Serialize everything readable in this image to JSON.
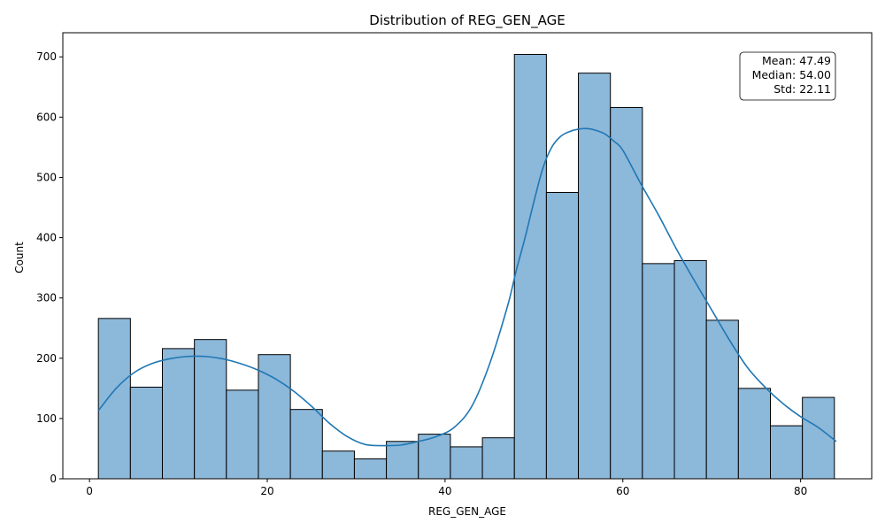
{
  "chart_data": {
    "type": "bar",
    "title": "Distribution of REG_GEN_AGE",
    "xlabel": "REG_GEN_AGE",
    "ylabel": "Count",
    "xlim": [
      -3,
      88
    ],
    "ylim": [
      0,
      740
    ],
    "x_ticks": [
      0,
      20,
      40,
      60,
      80
    ],
    "y_ticks": [
      0,
      100,
      200,
      300,
      400,
      500,
      600,
      700
    ],
    "bins": [
      {
        "x0": 1.0,
        "x1": 4.6,
        "count": 266
      },
      {
        "x0": 4.6,
        "x1": 8.2,
        "count": 152
      },
      {
        "x0": 8.2,
        "x1": 11.8,
        "count": 216
      },
      {
        "x0": 11.8,
        "x1": 15.4,
        "count": 231
      },
      {
        "x0": 15.4,
        "x1": 19.0,
        "count": 147
      },
      {
        "x0": 19.0,
        "x1": 22.6,
        "count": 206
      },
      {
        "x0": 22.6,
        "x1": 26.2,
        "count": 115
      },
      {
        "x0": 26.2,
        "x1": 29.8,
        "count": 46
      },
      {
        "x0": 29.8,
        "x1": 33.4,
        "count": 33
      },
      {
        "x0": 33.4,
        "x1": 37.0,
        "count": 62
      },
      {
        "x0": 37.0,
        "x1": 40.6,
        "count": 74
      },
      {
        "x0": 40.6,
        "x1": 44.2,
        "count": 53
      },
      {
        "x0": 44.2,
        "x1": 47.8,
        "count": 68
      },
      {
        "x0": 47.8,
        "x1": 51.4,
        "count": 704
      },
      {
        "x0": 51.4,
        "x1": 55.0,
        "count": 475
      },
      {
        "x0": 55.0,
        "x1": 58.6,
        "count": 673
      },
      {
        "x0": 58.6,
        "x1": 62.2,
        "count": 616
      },
      {
        "x0": 62.2,
        "x1": 65.8,
        "count": 357
      },
      {
        "x0": 65.8,
        "x1": 69.4,
        "count": 362
      },
      {
        "x0": 69.4,
        "x1": 73.0,
        "count": 263
      },
      {
        "x0": 73.0,
        "x1": 76.6,
        "count": 150
      },
      {
        "x0": 76.6,
        "x1": 80.2,
        "count": 88
      },
      {
        "x0": 80.2,
        "x1": 83.8,
        "count": 135
      }
    ],
    "kde": {
      "x": [
        1,
        3,
        5,
        7,
        9,
        11,
        13,
        15,
        17,
        19,
        21,
        23,
        25,
        27,
        29,
        31,
        33,
        35,
        37,
        39,
        41,
        43,
        45,
        47,
        48,
        49,
        50,
        51,
        52,
        53,
        54,
        55,
        56,
        57,
        58,
        59,
        60,
        62,
        64,
        66,
        68,
        70,
        72,
        74,
        76,
        78,
        80,
        82,
        84
      ],
      "y": [
        113,
        150,
        176,
        191,
        199,
        203,
        203,
        199,
        191,
        180,
        165,
        145,
        120,
        92,
        70,
        57,
        55,
        56,
        62,
        70,
        85,
        120,
        190,
        285,
        345,
        400,
        460,
        515,
        550,
        568,
        576,
        580,
        581,
        578,
        572,
        560,
        545,
        490,
        438,
        382,
        330,
        280,
        230,
        185,
        152,
        125,
        103,
        85,
        62
      ]
    },
    "bar_color": "#8cb8da",
    "bar_edge_color": "#000000",
    "line_color": "#1f77b4",
    "grid": false,
    "legend": "none"
  },
  "stats_box": {
    "placement": "top-right",
    "lines": [
      "Mean: 47.49",
      "Median: 54.00",
      "Std: 22.11"
    ]
  }
}
